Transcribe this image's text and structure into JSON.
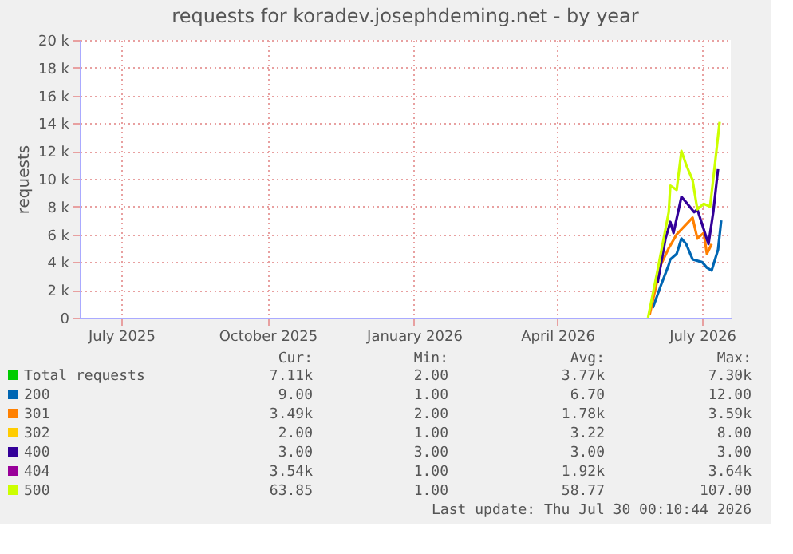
{
  "chart_data": {
    "type": "line",
    "title": "requests for koradev.josephdeming.net - by year",
    "ylabel": "requests",
    "xlim": [
      "2025-06-05",
      "2026-07-19"
    ],
    "xticks": [
      {
        "value": "2025-07-01",
        "label": "July 2025"
      },
      {
        "value": "2025-10-01",
        "label": "October 2025"
      },
      {
        "value": "2026-01-01",
        "label": "January 2026"
      },
      {
        "value": "2026-04-01",
        "label": "April 2026"
      },
      {
        "value": "2026-07-01",
        "label": "July 2026"
      }
    ],
    "ylim": [
      0,
      20000
    ],
    "yticks": [
      {
        "value": 0,
        "label": "0"
      },
      {
        "value": 2000,
        "label": "2 k"
      },
      {
        "value": 4000,
        "label": "4 k"
      },
      {
        "value": 6000,
        "label": "6 k"
      },
      {
        "value": 8000,
        "label": "8 k"
      },
      {
        "value": 10000,
        "label": "10 k"
      },
      {
        "value": 12000,
        "label": "12 k"
      },
      {
        "value": 14000,
        "label": "14 k"
      },
      {
        "value": 16000,
        "label": "16 k"
      },
      {
        "value": 18000,
        "label": "18 k"
      },
      {
        "value": 20000,
        "label": "20 k"
      }
    ],
    "grid": true,
    "legend": "bottom",
    "marker": "none",
    "line_style": "solid",
    "series": [
      {
        "name": "Total requests",
        "color": "#00cc00"
      },
      {
        "name": "200",
        "color": "#0066b3",
        "x": [
          "2026-05-31",
          "2026-06-05",
          "2026-06-10",
          "2026-06-11",
          "2026-06-15",
          "2026-06-18",
          "2026-06-21",
          "2026-06-25",
          "2026-07-01",
          "2026-07-04",
          "2026-07-07",
          "2026-07-11",
          "2026-07-13"
        ],
        "values": [
          700,
          2300,
          3800,
          4200,
          4600,
          5700,
          5300,
          4200,
          4000,
          3600,
          3400,
          4900,
          7000
        ]
      },
      {
        "name": "301",
        "color": "#ff8000",
        "x": [
          "2026-05-29",
          "2026-06-05",
          "2026-06-10",
          "2026-06-15",
          "2026-06-25",
          "2026-06-28",
          "2026-07-02",
          "2026-07-04",
          "2026-07-07"
        ],
        "values": [
          200,
          3800,
          5000,
          6000,
          7200,
          5700,
          6100,
          4600,
          5300
        ]
      },
      {
        "name": "302",
        "color": "#ffcc00"
      },
      {
        "name": "400",
        "color": "#330099",
        "x": [
          "2026-06-03",
          "2026-06-08",
          "2026-06-11",
          "2026-06-13",
          "2026-06-18",
          "2026-06-21",
          "2026-06-26",
          "2026-06-28",
          "2026-07-05",
          "2026-07-08",
          "2026-07-11"
        ],
        "values": [
          2500,
          5700,
          6900,
          6100,
          8700,
          8300,
          7600,
          7800,
          5300,
          7600,
          10700
        ]
      },
      {
        "name": "404",
        "color": "#990099"
      },
      {
        "name": "500",
        "color": "#ccff00",
        "x": [
          "2026-05-28",
          "2026-06-03",
          "2026-06-10",
          "2026-06-11",
          "2026-06-15",
          "2026-06-18",
          "2026-06-21",
          "2026-06-25",
          "2026-06-28",
          "2026-07-02",
          "2026-07-06",
          "2026-07-09",
          "2026-07-12"
        ],
        "values": [
          0,
          3400,
          7600,
          9500,
          9200,
          12000,
          11000,
          9900,
          7800,
          8200,
          8000,
          11000,
          14100
        ]
      }
    ],
    "annotations": [
      "Cur:",
      "Min:",
      "Avg:",
      "Max:",
      "7.11k",
      "2.00",
      "3.77k",
      "7.30k",
      "9.00",
      "1.00",
      "6.70",
      "12.00",
      "3.49k",
      "2.00",
      "1.78k",
      "3.59k",
      "2.00",
      "1.00",
      "3.22",
      "8.00",
      "3.00",
      "3.00",
      "3.00",
      "3.00",
      "3.54k",
      "1.00",
      "1.92k",
      "3.64k",
      "63.85",
      "1.00",
      "58.77",
      "107.00",
      "Last update: Thu Jul 30 00:10:44 2026"
    ]
  }
}
